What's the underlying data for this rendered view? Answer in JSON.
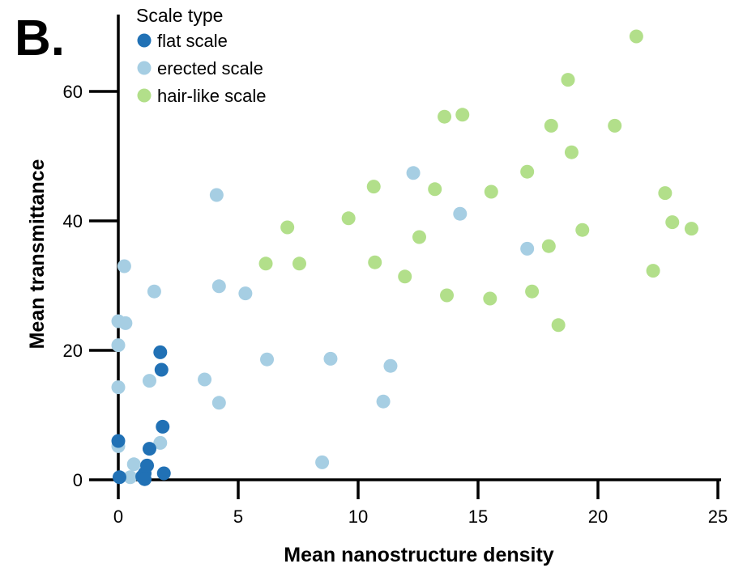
{
  "panel_label": "B.",
  "chart_data": {
    "type": "scatter",
    "xlabel": "Mean nanostructure density",
    "ylabel": "Mean transmittance",
    "xlim": [
      0,
      25
    ],
    "ylim": [
      0,
      70
    ],
    "x_ticks": [
      0,
      5,
      10,
      15,
      20,
      25
    ],
    "y_ticks": [
      0,
      20,
      40,
      60
    ],
    "grid": false,
    "legend": {
      "title": "Scale type",
      "placement": "top-left"
    },
    "series": [
      {
        "name": "flat scale",
        "color": "#2171b5",
        "points": [
          [
            1.75,
            19.7
          ],
          [
            1.8,
            17.0
          ],
          [
            1.85,
            8.2
          ],
          [
            0.0,
            6.0
          ],
          [
            1.3,
            4.8
          ],
          [
            1.2,
            2.2
          ],
          [
            1.1,
            1.0
          ],
          [
            1.9,
            1.0
          ],
          [
            1.0,
            0.5
          ],
          [
            1.1,
            0.1
          ],
          [
            0.05,
            0.4
          ]
        ]
      },
      {
        "name": "erected scale",
        "color": "#a6cee3",
        "points": [
          [
            4.1,
            44.0
          ],
          [
            0.25,
            33.0
          ],
          [
            0.0,
            24.5
          ],
          [
            0.3,
            24.2
          ],
          [
            0.0,
            20.8
          ],
          [
            1.5,
            29.1
          ],
          [
            4.2,
            29.9
          ],
          [
            5.3,
            28.8
          ],
          [
            1.3,
            15.3
          ],
          [
            0.0,
            14.3
          ],
          [
            3.6,
            15.5
          ],
          [
            4.2,
            11.9
          ],
          [
            6.2,
            18.6
          ],
          [
            8.85,
            18.7
          ],
          [
            11.35,
            17.6
          ],
          [
            11.05,
            12.1
          ],
          [
            8.5,
            2.7
          ],
          [
            0.0,
            5.2
          ],
          [
            1.75,
            5.7
          ],
          [
            0.65,
            2.4
          ],
          [
            0.5,
            0.4
          ],
          [
            12.3,
            47.4
          ],
          [
            14.25,
            41.1
          ],
          [
            17.05,
            35.7
          ]
        ]
      },
      {
        "name": "hair-like scale",
        "color": "#b2df8a",
        "points": [
          [
            21.6,
            68.5
          ],
          [
            18.75,
            61.8
          ],
          [
            13.6,
            56.1
          ],
          [
            14.35,
            56.4
          ],
          [
            18.05,
            54.7
          ],
          [
            20.7,
            54.7
          ],
          [
            18.9,
            50.6
          ],
          [
            17.05,
            47.6
          ],
          [
            10.65,
            45.3
          ],
          [
            13.2,
            44.9
          ],
          [
            15.55,
            44.5
          ],
          [
            22.8,
            44.3
          ],
          [
            9.6,
            40.4
          ],
          [
            7.05,
            39.0
          ],
          [
            23.1,
            39.8
          ],
          [
            23.9,
            38.8
          ],
          [
            19.35,
            38.6
          ],
          [
            12.55,
            37.5
          ],
          [
            17.95,
            36.1
          ],
          [
            6.15,
            33.4
          ],
          [
            7.55,
            33.4
          ],
          [
            10.7,
            33.6
          ],
          [
            22.3,
            32.3
          ],
          [
            11.95,
            31.4
          ],
          [
            13.7,
            28.5
          ],
          [
            15.5,
            28.0
          ],
          [
            17.25,
            29.1
          ],
          [
            18.35,
            23.9
          ]
        ]
      }
    ]
  }
}
